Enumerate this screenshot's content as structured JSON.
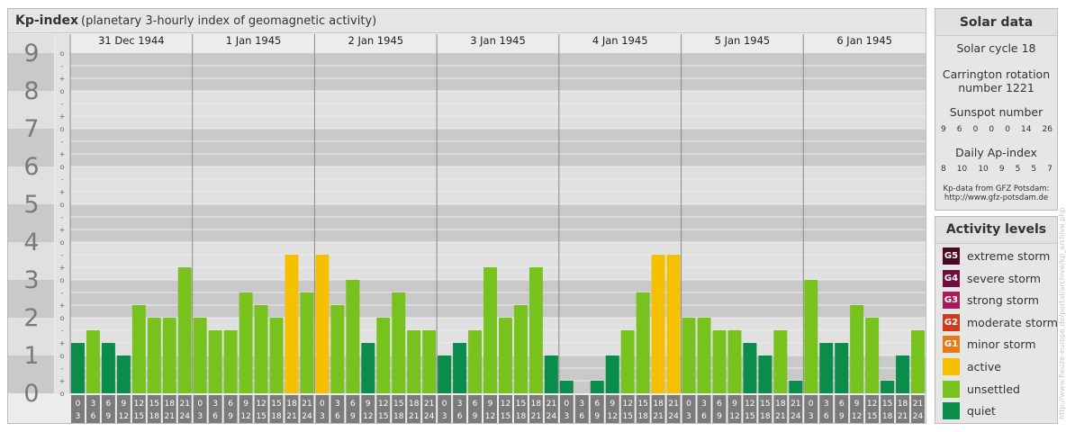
{
  "header": {
    "title": "Kp-index",
    "subtitle": "(planetary 3-hourly index of geomagnetic activity)"
  },
  "solar_data": {
    "title": "Solar data",
    "solar_cycle": "Solar cycle 18",
    "carrington_line1": "Carrington rotation",
    "carrington_line2": "number 1221",
    "sunspot_title": "Sunspot number",
    "sunspot_values": [
      "9",
      "6",
      "0",
      "0",
      "0",
      "14",
      "26"
    ],
    "ap_title": "Daily Ap-index",
    "ap_values": [
      "8",
      "10",
      "10",
      "9",
      "5",
      "5",
      "7"
    ],
    "credit_line1": "Kp-data from GFZ Potsdam:",
    "credit_line2": "http://www.gfz-potsdam.de"
  },
  "activity_levels": {
    "title": "Activity levels",
    "items": [
      {
        "badge": "G5",
        "label": "extreme storm",
        "color": "#4a0a24"
      },
      {
        "badge": "G4",
        "label": "severe storm",
        "color": "#6e0e3c"
      },
      {
        "badge": "G3",
        "label": "strong storm",
        "color": "#a81c5a"
      },
      {
        "badge": "G2",
        "label": "moderate storm",
        "color": "#d23a1e"
      },
      {
        "badge": "G1",
        "label": "minor storm",
        "color": "#e57a17"
      },
      {
        "badge": "",
        "label": "active",
        "color": "#f5c000"
      },
      {
        "badge": "",
        "label": "unsettled",
        "color": "#78c21e"
      },
      {
        "badge": "",
        "label": "quiet",
        "color": "#0a8c4a"
      }
    ]
  },
  "watermark": "http://www.fleuze-europe.de/portal/archive/kp_archive.php",
  "colors": {
    "quiet": "#0a8c4a",
    "unsettled": "#78c21e",
    "active": "#f5c000",
    "band_dark": "#c9c9c9",
    "band_light": "#e0e0e0"
  },
  "chart_data": {
    "type": "bar",
    "title": "Kp-index",
    "subtitle": "(planetary 3-hourly index of geomagnetic activity)",
    "ylim": [
      0,
      9
    ],
    "y_ticks": [
      "0",
      "1",
      "2",
      "3",
      "4",
      "5",
      "6",
      "7",
      "8",
      "9"
    ],
    "sub_ticks": [
      "o",
      "+",
      "-",
      "o",
      "+",
      "-",
      "o",
      "+",
      "-",
      "o",
      "+",
      "-",
      "o",
      "+",
      "-",
      "o",
      "+",
      "-",
      "o",
      "+",
      "-",
      "o",
      "+",
      "-",
      "o",
      "+",
      "-",
      "o"
    ],
    "days": [
      "31 Dec 1944",
      "1 Jan 1945",
      "2 Jan 1945",
      "3 Jan 1945",
      "4 Jan 1945",
      "5 Jan 1945",
      "6 Jan 1945"
    ],
    "interval_starts": [
      "0",
      "3",
      "6",
      "9",
      "12",
      "15",
      "18",
      "21"
    ],
    "interval_ends": [
      "3",
      "6",
      "9",
      "12",
      "15",
      "18",
      "21",
      "24"
    ],
    "values": [
      [
        1.333,
        1.667,
        1.333,
        1.0,
        2.333,
        2.0,
        2.0,
        3.333
      ],
      [
        2.0,
        1.667,
        1.667,
        2.667,
        2.333,
        2.0,
        3.667,
        2.667
      ],
      [
        3.667,
        2.333,
        3.0,
        1.333,
        2.0,
        2.667,
        1.667,
        1.667
      ],
      [
        1.0,
        1.333,
        1.667,
        3.333,
        2.0,
        2.333,
        3.333,
        1.0
      ],
      [
        0.333,
        0.0,
        0.333,
        1.0,
        1.667,
        2.667,
        3.667,
        3.667
      ],
      [
        2.0,
        2.0,
        1.667,
        1.667,
        1.333,
        1.0,
        1.667,
        0.333
      ],
      [
        3.0,
        1.333,
        1.333,
        2.333,
        2.0,
        0.333,
        1.0,
        1.667
      ]
    ]
  }
}
